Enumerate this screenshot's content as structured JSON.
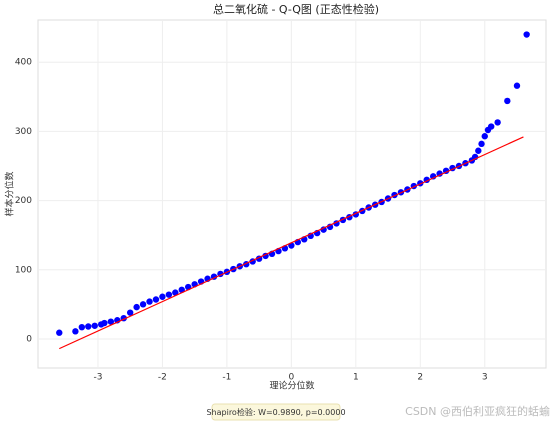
{
  "chart_data": {
    "type": "scatter",
    "title": "总二氧化硫 - Q-Q图 (正态性检验)",
    "x_label": "理论分位数",
    "y_label": "样本分位数",
    "annotation": "Shapiro检验: W=0.9890, p=0.0000",
    "watermark": "CSDN @西伯利亚疯狂的蛞蝓",
    "xlim": [
      -3.93,
      3.95
    ],
    "ylim": [
      -42,
      461
    ],
    "xticks": [
      -3,
      -2,
      -1,
      0,
      1,
      2,
      3
    ],
    "yticks": [
      0,
      100,
      200,
      300,
      400
    ],
    "grid": true,
    "series": [
      {
        "color": "#0000ff",
        "x": [
          -3.6,
          -3.35,
          -3.25,
          -3.15,
          -3.05,
          -2.95,
          -2.9,
          -2.8,
          -2.7,
          -2.6,
          -2.5,
          -2.4,
          -2.3,
          -2.2,
          -2.1,
          -2.0,
          -1.9,
          -1.8,
          -1.7,
          -1.6,
          -1.5,
          -1.4,
          -1.3,
          -1.2,
          -1.1,
          -1.0,
          -0.9,
          -0.8,
          -0.7,
          -0.6,
          -0.5,
          -0.4,
          -0.3,
          -0.2,
          -0.1,
          0,
          0.1,
          0.2,
          0.3,
          0.4,
          0.5,
          0.6,
          0.7,
          0.8,
          0.9,
          1.0,
          1.1,
          1.2,
          1.3,
          1.4,
          1.5,
          1.6,
          1.7,
          1.8,
          1.9,
          2.0,
          2.1,
          2.2,
          2.3,
          2.4,
          2.5,
          2.6,
          2.7,
          2.8,
          2.85,
          2.9,
          2.95,
          3.0,
          3.05,
          3.1,
          3.2,
          3.35,
          3.5,
          3.65
        ],
        "values": [
          9,
          11,
          17,
          18,
          19,
          21,
          23,
          25,
          27,
          30,
          38,
          46,
          50,
          54,
          57,
          61,
          64,
          67,
          71,
          75,
          79,
          83,
          87,
          90,
          94,
          97,
          101,
          105,
          108,
          112,
          116,
          120,
          123,
          127,
          131,
          135,
          140,
          144,
          149,
          153,
          158,
          162,
          167,
          172,
          176,
          180,
          185,
          190,
          194,
          198,
          203,
          208,
          212,
          216,
          221,
          225,
          230,
          235,
          239,
          243,
          247,
          250,
          254,
          258,
          263,
          272,
          282,
          293,
          302,
          307,
          313,
          344,
          366,
          440
        ]
      }
    ],
    "reference_line": {
      "color": "#ff0000",
      "x": [
        -3.6,
        3.6
      ],
      "values": [
        -14,
        292
      ]
    }
  }
}
